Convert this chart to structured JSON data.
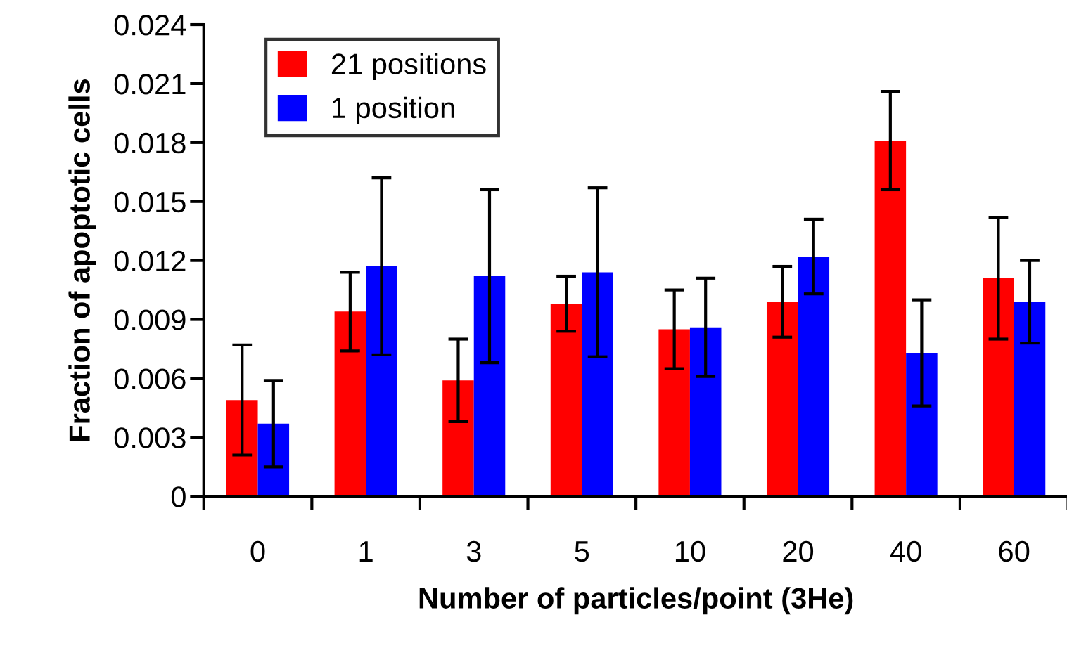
{
  "chart_data": {
    "type": "bar",
    "xlabel": "Number of particles/point (3He)",
    "ylabel": "Fraction of apoptotic cells",
    "categories": [
      "0",
      "1",
      "3",
      "5",
      "10",
      "20",
      "40",
      "60"
    ],
    "series": [
      {
        "name": "21 positions",
        "color": "#ff0000",
        "values": [
          0.0049,
          0.0094,
          0.0059,
          0.0098,
          0.0085,
          0.0099,
          0.0181,
          0.0111
        ],
        "errors": [
          0.0028,
          0.002,
          0.0021,
          0.0014,
          0.002,
          0.0018,
          0.0025,
          0.0031
        ]
      },
      {
        "name": "1 position",
        "color": "#0000ff",
        "values": [
          0.0037,
          0.0117,
          0.0112,
          0.0114,
          0.0086,
          0.0122,
          0.0073,
          0.0099
        ],
        "errors": [
          0.0022,
          0.0045,
          0.0044,
          0.0043,
          0.0025,
          0.0019,
          0.0027,
          0.0021
        ]
      }
    ],
    "ylim": [
      0,
      0.024
    ],
    "yticks": [
      0,
      0.003,
      0.006,
      0.009,
      0.012,
      0.015,
      0.018,
      0.021,
      0.024
    ],
    "grid": false,
    "legend": "top left"
  }
}
